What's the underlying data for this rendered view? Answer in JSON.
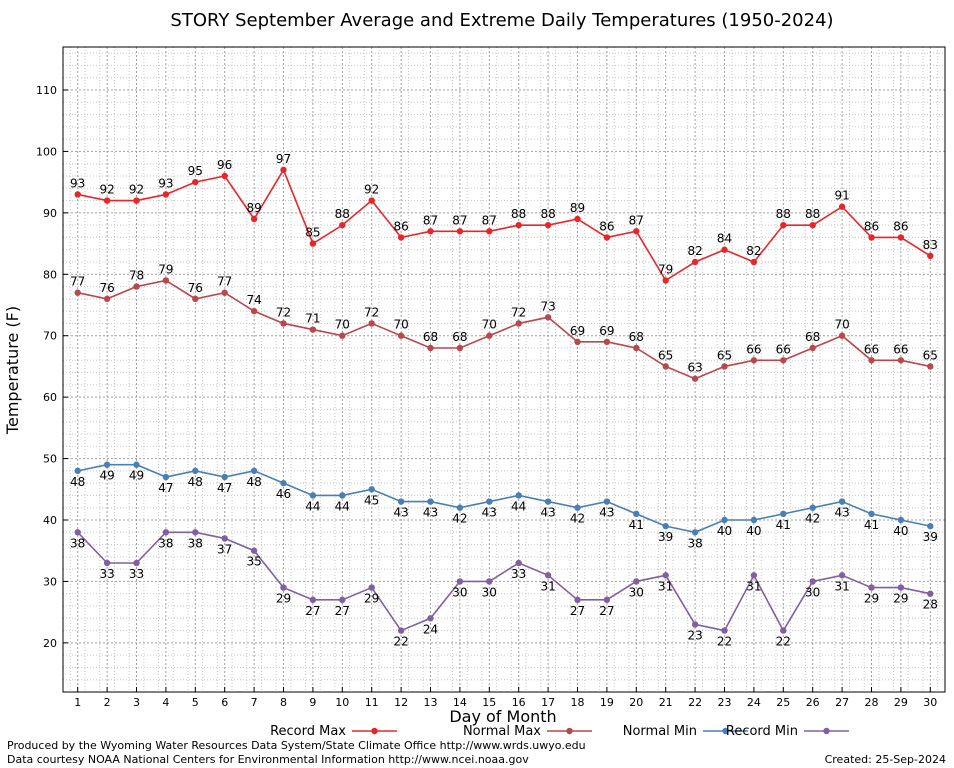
{
  "chart_data": {
    "type": "line",
    "title": "STORY September Average and Extreme Daily Temperatures (1950-2024)",
    "xlabel": "Day of Month",
    "ylabel": "Temperature (F)",
    "x": [
      1,
      2,
      3,
      4,
      5,
      6,
      7,
      8,
      9,
      10,
      11,
      12,
      13,
      14,
      15,
      16,
      17,
      18,
      19,
      20,
      21,
      22,
      23,
      24,
      25,
      26,
      27,
      28,
      29,
      30
    ],
    "xlim": [
      0.5,
      30.5
    ],
    "ylim": [
      12,
      117
    ],
    "yticks": [
      20,
      30,
      40,
      50,
      60,
      70,
      80,
      90,
      100,
      110
    ],
    "grid": true,
    "legend_position": "bottom",
    "series": [
      {
        "name": "Record Max",
        "color": "#e8262a",
        "label_position": "above",
        "values": [
          93,
          92,
          92,
          93,
          95,
          96,
          89,
          97,
          85,
          88,
          92,
          86,
          87,
          87,
          87,
          88,
          88,
          89,
          86,
          87,
          79,
          82,
          84,
          82,
          88,
          88,
          91,
          86,
          86,
          83
        ]
      },
      {
        "name": "Normal Max",
        "color": "#b8484c",
        "label_position": "above",
        "values": [
          77,
          76,
          78,
          79,
          76,
          77,
          74,
          72,
          71,
          70,
          72,
          70,
          68,
          68,
          70,
          72,
          73,
          69,
          69,
          68,
          65,
          63,
          65,
          66,
          66,
          68,
          70,
          66,
          66,
          65
        ]
      },
      {
        "name": "Normal Min",
        "color": "#4a7fb5",
        "label_position": "below",
        "values": [
          48,
          49,
          49,
          47,
          48,
          47,
          48,
          46,
          44,
          44,
          45,
          43,
          43,
          42,
          43,
          44,
          43,
          42,
          43,
          41,
          39,
          38,
          40,
          40,
          41,
          42,
          43,
          41,
          40,
          39
        ]
      },
      {
        "name": "Record Min",
        "color": "#8060a0",
        "label_position": "below",
        "values": [
          38,
          33,
          33,
          38,
          38,
          37,
          35,
          29,
          27,
          27,
          29,
          22,
          24,
          30,
          30,
          33,
          31,
          27,
          27,
          30,
          31,
          23,
          22,
          31,
          22,
          30,
          31,
          29,
          29,
          28
        ]
      }
    ]
  },
  "footer": {
    "produced_by": "Produced by the Wyoming Water Resources Data System/State Climate Office http://www.wrds.uwyo.edu",
    "data_courtesy": "Data courtesy NOAA National Centers for Environmental Information http://www.ncei.noaa.gov",
    "created": "Created: 25-Sep-2024"
  }
}
